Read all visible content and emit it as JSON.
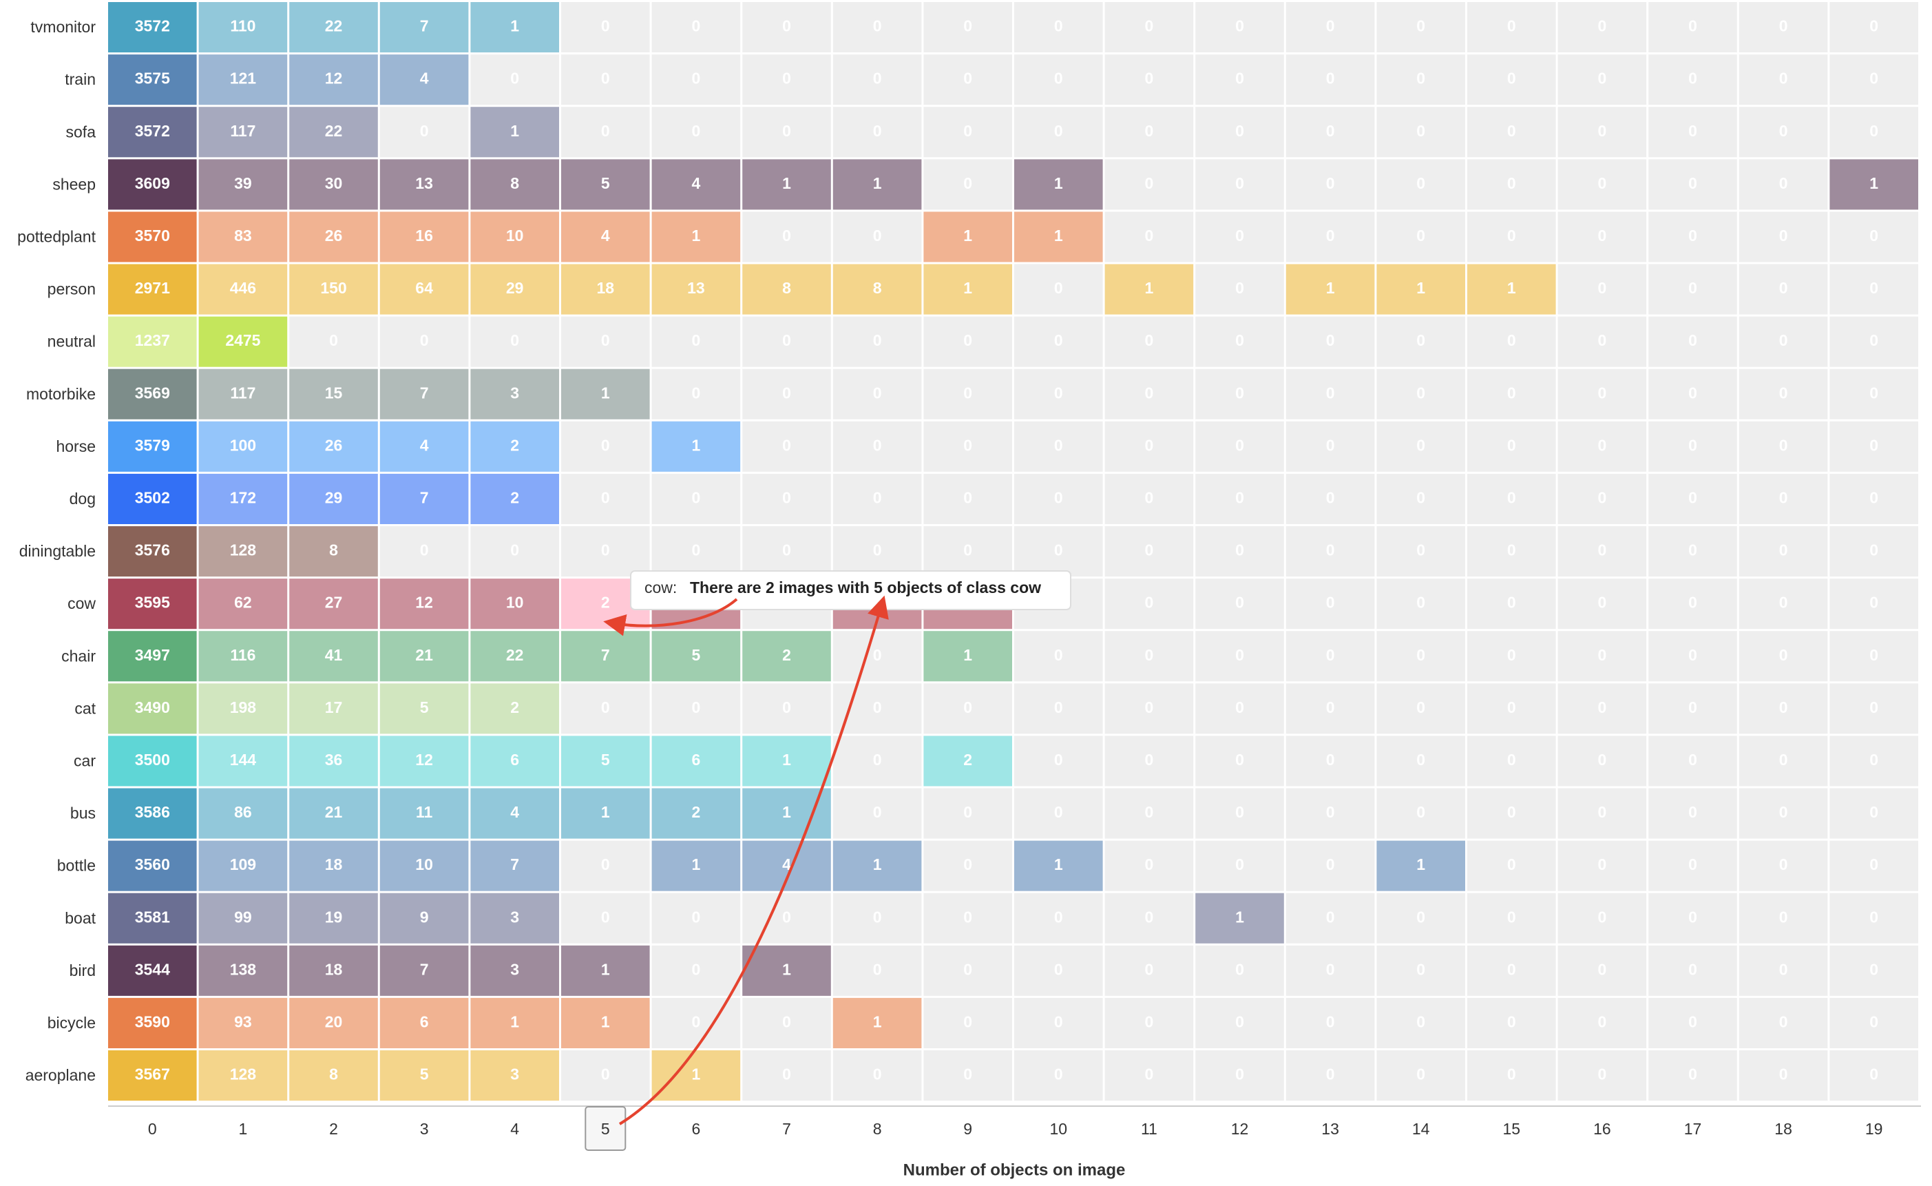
{
  "chart_data": {
    "type": "heatmap",
    "x": [
      0,
      1,
      2,
      3,
      4,
      5,
      6,
      7,
      8,
      9,
      10,
      11,
      12,
      13,
      14,
      15,
      16,
      17,
      18,
      19
    ],
    "xlabel": "Number of objects on image",
    "zero_color": "#eeeeee",
    "series": [
      {
        "name": "tvmonitor",
        "color": "#4aa3c2",
        "values": [
          3572,
          110,
          22,
          7,
          1,
          0,
          0,
          0,
          0,
          0,
          0,
          0,
          0,
          0,
          0,
          0,
          0,
          0,
          0,
          0
        ]
      },
      {
        "name": "train",
        "color": "#5a86b5",
        "values": [
          3575,
          121,
          12,
          4,
          0,
          0,
          0,
          0,
          0,
          0,
          0,
          0,
          0,
          0,
          0,
          0,
          0,
          0,
          0,
          0
        ]
      },
      {
        "name": "sofa",
        "color": "#6b6f93",
        "values": [
          3572,
          117,
          22,
          0,
          1,
          0,
          0,
          0,
          0,
          0,
          0,
          0,
          0,
          0,
          0,
          0,
          0,
          0,
          0,
          0
        ]
      },
      {
        "name": "sheep",
        "color": "#5e3e5a",
        "values": [
          3609,
          39,
          30,
          13,
          8,
          5,
          4,
          1,
          1,
          0,
          1,
          0,
          0,
          0,
          0,
          0,
          0,
          0,
          0,
          1
        ]
      },
      {
        "name": "pottedplant",
        "color": "#e8804a",
        "values": [
          3570,
          83,
          26,
          16,
          10,
          4,
          1,
          0,
          0,
          1,
          1,
          0,
          0,
          0,
          0,
          0,
          0,
          0,
          0,
          0
        ]
      },
      {
        "name": "person",
        "color": "#ecb93d",
        "values": [
          2971,
          446,
          150,
          64,
          29,
          18,
          13,
          8,
          8,
          1,
          0,
          1,
          0,
          1,
          1,
          1,
          0,
          0,
          0,
          0
        ]
      },
      {
        "name": "neutral",
        "color": "#c4e65c",
        "values": [
          1237,
          2475,
          0,
          0,
          0,
          0,
          0,
          0,
          0,
          0,
          0,
          0,
          0,
          0,
          0,
          0,
          0,
          0,
          0,
          0
        ]
      },
      {
        "name": "motorbike",
        "color": "#7d8d8a",
        "values": [
          3569,
          117,
          15,
          7,
          3,
          1,
          0,
          0,
          0,
          0,
          0,
          0,
          0,
          0,
          0,
          0,
          0,
          0,
          0,
          0
        ]
      },
      {
        "name": "horse",
        "color": "#4d9ef7",
        "values": [
          3579,
          100,
          26,
          4,
          2,
          0,
          1,
          0,
          0,
          0,
          0,
          0,
          0,
          0,
          0,
          0,
          0,
          0,
          0,
          0
        ]
      },
      {
        "name": "dog",
        "color": "#3370f5",
        "values": [
          3502,
          172,
          29,
          7,
          2,
          0,
          0,
          0,
          0,
          0,
          0,
          0,
          0,
          0,
          0,
          0,
          0,
          0,
          0,
          0
        ]
      },
      {
        "name": "diningtable",
        "color": "#8a6358",
        "values": [
          3576,
          128,
          8,
          0,
          0,
          0,
          0,
          0,
          0,
          0,
          0,
          0,
          0,
          0,
          0,
          0,
          0,
          0,
          0,
          0
        ]
      },
      {
        "name": "cow",
        "color": "#a8475a",
        "values": [
          3595,
          62,
          27,
          12,
          10,
          2,
          1,
          0,
          1,
          1,
          0,
          0,
          0,
          0,
          0,
          0,
          0,
          0,
          0,
          0
        ]
      },
      {
        "name": "chair",
        "color": "#5fae7a",
        "values": [
          3497,
          116,
          41,
          21,
          22,
          7,
          5,
          2,
          0,
          1,
          0,
          0,
          0,
          0,
          0,
          0,
          0,
          0,
          0,
          0
        ]
      },
      {
        "name": "cat",
        "color": "#b2d694",
        "values": [
          3490,
          198,
          17,
          5,
          2,
          0,
          0,
          0,
          0,
          0,
          0,
          0,
          0,
          0,
          0,
          0,
          0,
          0,
          0,
          0
        ]
      },
      {
        "name": "car",
        "color": "#5fd6d6",
        "values": [
          3500,
          144,
          36,
          12,
          6,
          5,
          6,
          1,
          0,
          2,
          0,
          0,
          0,
          0,
          0,
          0,
          0,
          0,
          0,
          0
        ]
      },
      {
        "name": "bus",
        "color": "#4aa3c2",
        "values": [
          3586,
          86,
          21,
          11,
          4,
          1,
          2,
          1,
          0,
          0,
          0,
          0,
          0,
          0,
          0,
          0,
          0,
          0,
          0,
          0
        ]
      },
      {
        "name": "bottle",
        "color": "#5a86b5",
        "values": [
          3560,
          109,
          18,
          10,
          7,
          0,
          1,
          4,
          1,
          0,
          1,
          0,
          0,
          0,
          1,
          0,
          0,
          0,
          0,
          0
        ]
      },
      {
        "name": "boat",
        "color": "#6b6f93",
        "values": [
          3581,
          99,
          19,
          9,
          3,
          0,
          0,
          0,
          0,
          0,
          0,
          0,
          1,
          0,
          0,
          0,
          0,
          0,
          0,
          0
        ]
      },
      {
        "name": "bird",
        "color": "#5e3e5a",
        "values": [
          3544,
          138,
          18,
          7,
          3,
          1,
          0,
          1,
          0,
          0,
          0,
          0,
          0,
          0,
          0,
          0,
          0,
          0,
          0,
          0
        ]
      },
      {
        "name": "bicycle",
        "color": "#e8804a",
        "values": [
          3590,
          93,
          20,
          6,
          1,
          1,
          0,
          0,
          1,
          0,
          0,
          0,
          0,
          0,
          0,
          0,
          0,
          0,
          0,
          0
        ]
      },
      {
        "name": "aeroplane",
        "color": "#ecb93d",
        "values": [
          3567,
          128,
          8,
          5,
          3,
          0,
          1,
          0,
          0,
          0,
          0,
          0,
          0,
          0,
          0,
          0,
          0,
          0,
          0,
          0
        ]
      }
    ],
    "highlight": {
      "series": "cow",
      "x": 5,
      "color": "#ffc8d6"
    },
    "tooltip": {
      "label": "cow:",
      "text": "There are 2 images with 5 objects of class cow"
    }
  }
}
